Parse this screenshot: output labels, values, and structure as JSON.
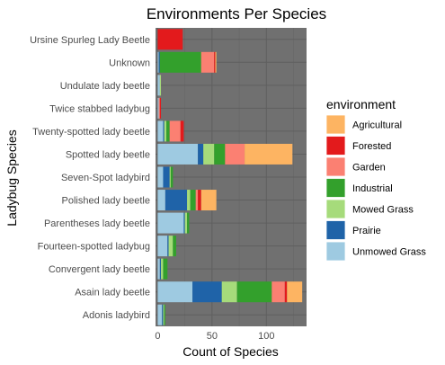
{
  "chart_data": {
    "type": "bar",
    "orientation": "horizontal",
    "stacked": true,
    "title": "Environments Per Species",
    "xlabel": "Count of Species",
    "ylabel": "Ladybug Species",
    "xlim": [
      -2,
      137
    ],
    "xticks": [
      0,
      50,
      100
    ],
    "grid": true,
    "background": "#707070",
    "legend_position": "right",
    "legend_title": "environment",
    "categories": [
      "Adonis ladybird",
      "Asain lady beetle",
      "Convergent lady beetle",
      "Fourteen-spotted ladybug",
      "Parentheses lady beetle",
      "Polished lady beetle",
      "Seven-Spot ladybird",
      "Spotted lady beetle",
      "Twenty-spotted lady beetle",
      "Twice stabbed ladybug",
      "Undulate lady beetle",
      "Unknown",
      "Ursine Spurleg Lady Beetle"
    ],
    "stack_order": [
      "Agricultural",
      "Forested",
      "Garden",
      "Industrial",
      "Mowed Grass",
      "Prairie",
      "Unmowed Grass"
    ],
    "series": [
      {
        "name": "Agricultural",
        "color": "#FDB462",
        "values": [
          0,
          14,
          0,
          0,
          0,
          14,
          0,
          44,
          0,
          0,
          0,
          1,
          0
        ]
      },
      {
        "name": "Forested",
        "color": "#E31A1C",
        "values": [
          0,
          2,
          0,
          0,
          0,
          3,
          0,
          0,
          3,
          1,
          0,
          1,
          23
        ]
      },
      {
        "name": "Garden",
        "color": "#FB8072",
        "values": [
          0,
          12,
          0,
          0,
          0,
          2,
          0,
          18,
          10,
          1,
          0,
          12,
          0
        ]
      },
      {
        "name": "Industrial",
        "color": "#33A02C",
        "values": [
          1,
          32,
          4,
          3,
          2,
          5,
          2,
          10,
          3,
          0,
          0,
          38,
          0
        ]
      },
      {
        "name": "Mowed Grass",
        "color": "#A6DB7B",
        "values": [
          1,
          14,
          2,
          4,
          2,
          3,
          1,
          10,
          2,
          0,
          1,
          0,
          0
        ]
      },
      {
        "name": "Prairie",
        "color": "#1F63A8",
        "values": [
          1,
          27,
          1,
          1,
          1,
          20,
          6,
          5,
          1,
          0,
          0,
          1,
          0
        ]
      },
      {
        "name": "Unmowed Grass",
        "color": "#9ECAE1",
        "values": [
          4,
          32,
          2,
          9,
          24,
          7,
          5,
          37,
          5,
          1,
          2,
          1,
          0
        ]
      }
    ],
    "legend_order": [
      "Agricultural",
      "Forested",
      "Garden",
      "Industrial",
      "Mowed Grass",
      "Prairie",
      "Unmowed Grass"
    ]
  }
}
